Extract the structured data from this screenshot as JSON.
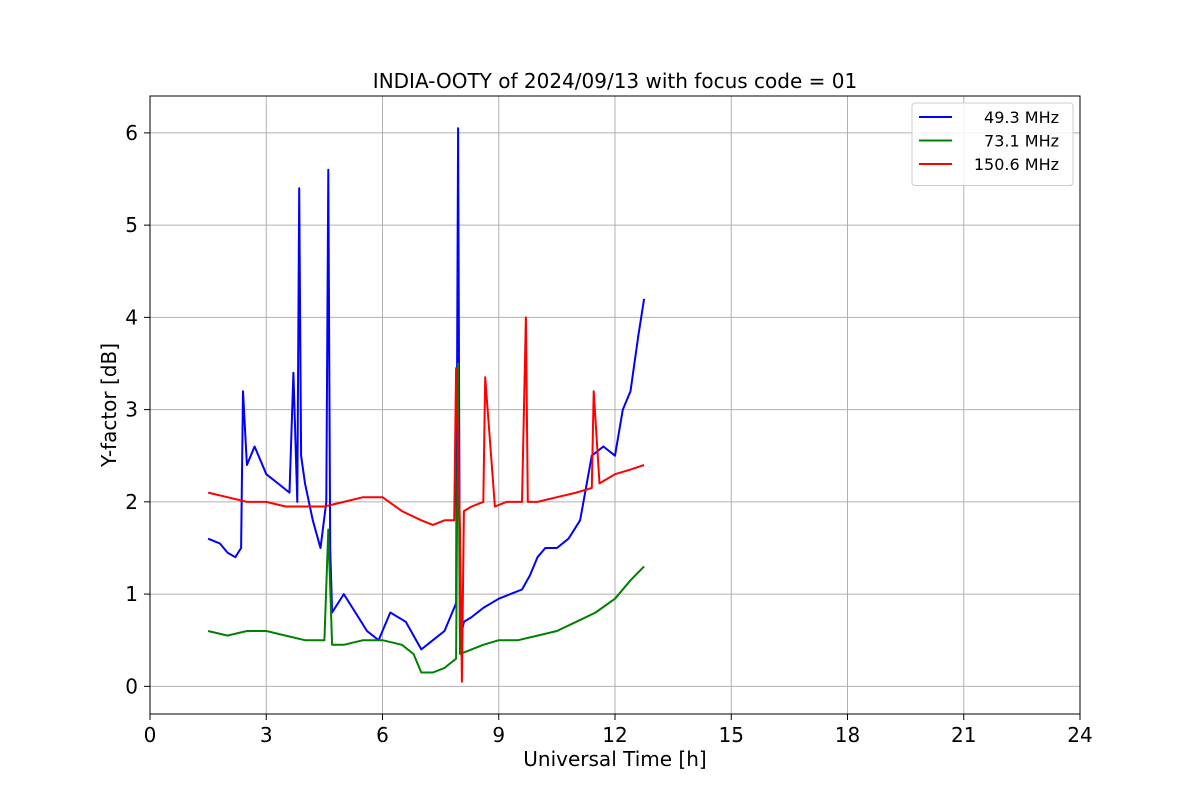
{
  "chart_data": {
    "type": "line",
    "title": "INDIA-OOTY of 2024/09/13 with focus code = 01",
    "xlabel": "Universal Time [h]",
    "ylabel": "Y-factor [dB]",
    "xlim": [
      0,
      24
    ],
    "ylim": [
      -0.3,
      6.4
    ],
    "xticks": [
      0,
      3,
      6,
      9,
      12,
      15,
      18,
      21,
      24
    ],
    "yticks": [
      0,
      1,
      2,
      3,
      4,
      5,
      6
    ],
    "grid": true,
    "legend_position": "top-right",
    "series": [
      {
        "name": "49.3 MHz",
        "color": "#0000ff",
        "x": [
          1.5,
          1.8,
          2.0,
          2.2,
          2.35,
          2.4,
          2.5,
          2.7,
          3.0,
          3.3,
          3.6,
          3.7,
          3.8,
          3.85,
          3.9,
          4.0,
          4.2,
          4.4,
          4.55,
          4.6,
          4.65,
          4.7,
          5.0,
          5.3,
          5.6,
          5.9,
          6.2,
          6.6,
          7.0,
          7.3,
          7.6,
          7.9,
          7.95,
          8.0,
          8.1,
          8.3,
          8.6,
          9.0,
          9.3,
          9.6,
          9.8,
          10.0,
          10.2,
          10.5,
          10.8,
          11.1,
          11.4,
          11.7,
          12.0,
          12.2,
          12.4,
          12.6,
          12.75
        ],
        "y": [
          1.6,
          1.55,
          1.45,
          1.4,
          1.5,
          3.2,
          2.4,
          2.6,
          2.3,
          2.2,
          2.1,
          3.4,
          2.0,
          5.4,
          2.5,
          2.2,
          1.8,
          1.5,
          2.0,
          5.6,
          1.5,
          0.8,
          1.0,
          0.8,
          0.6,
          0.5,
          0.8,
          0.7,
          0.4,
          0.5,
          0.6,
          0.9,
          6.05,
          0.5,
          0.7,
          0.75,
          0.85,
          0.95,
          1.0,
          1.05,
          1.2,
          1.4,
          1.5,
          1.5,
          1.6,
          1.8,
          2.5,
          2.6,
          2.5,
          3.0,
          3.2,
          3.8,
          4.2
        ]
      },
      {
        "name": "73.1 MHz",
        "color": "#008000",
        "x": [
          1.5,
          2.0,
          2.5,
          3.0,
          3.5,
          4.0,
          4.5,
          4.6,
          4.7,
          5.0,
          5.5,
          6.0,
          6.5,
          6.8,
          7.0,
          7.3,
          7.6,
          7.9,
          7.95,
          8.0,
          8.3,
          8.6,
          9.0,
          9.5,
          10.0,
          10.5,
          11.0,
          11.5,
          12.0,
          12.4,
          12.75
        ],
        "y": [
          0.6,
          0.55,
          0.6,
          0.6,
          0.55,
          0.5,
          0.5,
          1.7,
          0.45,
          0.45,
          0.5,
          0.5,
          0.45,
          0.35,
          0.15,
          0.15,
          0.2,
          0.3,
          3.5,
          0.35,
          0.4,
          0.45,
          0.5,
          0.5,
          0.55,
          0.6,
          0.7,
          0.8,
          0.95,
          1.15,
          1.3
        ]
      },
      {
        "name": "150.6 MHz",
        "color": "#ff0000",
        "x": [
          1.5,
          2.0,
          2.5,
          3.0,
          3.5,
          4.0,
          4.5,
          5.0,
          5.5,
          6.0,
          6.5,
          7.0,
          7.3,
          7.6,
          7.85,
          7.9,
          8.0,
          8.05,
          8.1,
          8.3,
          8.6,
          8.65,
          8.9,
          9.2,
          9.6,
          9.7,
          9.75,
          10.0,
          10.5,
          11.0,
          11.4,
          11.45,
          11.6,
          12.0,
          12.4,
          12.75
        ],
        "y": [
          2.1,
          2.05,
          2.0,
          2.0,
          1.95,
          1.95,
          1.95,
          2.0,
          2.05,
          2.05,
          1.9,
          1.8,
          1.75,
          1.8,
          1.8,
          3.45,
          1.7,
          0.05,
          1.9,
          1.95,
          2.0,
          3.35,
          1.95,
          2.0,
          2.0,
          4.0,
          2.0,
          2.0,
          2.05,
          2.1,
          2.15,
          3.2,
          2.2,
          2.3,
          2.35,
          2.4
        ]
      }
    ]
  }
}
